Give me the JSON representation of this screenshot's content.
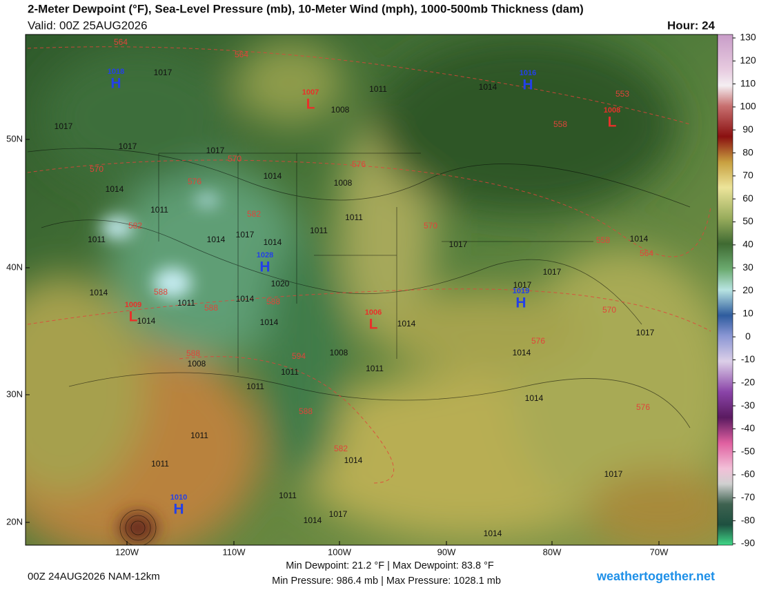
{
  "header": {
    "title": "2-Meter Dewpoint (°F), Sea-Level Pressure (mb), 10-Meter Wind (mph), 1000-500mb Thickness (dam)",
    "valid": "Valid: 00Z 25AUG2026",
    "hour": "Hour: 24"
  },
  "colorbar": {
    "labels": [
      130,
      120,
      110,
      100,
      90,
      80,
      70,
      60,
      50,
      40,
      30,
      20,
      10,
      0,
      -10,
      -20,
      -30,
      -40,
      -50,
      -60,
      -70,
      -80,
      -90
    ]
  },
  "axes": {
    "lat_labels": [
      "50N",
      "40N",
      "30N",
      "20N"
    ],
    "lon_labels": [
      "120W",
      "110W",
      "100W",
      "90W",
      "80W",
      "70W"
    ]
  },
  "centers": [
    {
      "symbol": "H",
      "pressure": "1018"
    },
    {
      "symbol": "H",
      "pressure": "1016"
    },
    {
      "symbol": "L",
      "pressure": "1007"
    },
    {
      "symbol": "L",
      "pressure": "1008"
    },
    {
      "symbol": "H",
      "pressure": "1028"
    },
    {
      "symbol": "L",
      "pressure": "1009"
    },
    {
      "symbol": "H",
      "pressure": "1019"
    },
    {
      "symbol": "L",
      "pressure": "1006"
    },
    {
      "symbol": "H",
      "pressure": "1010"
    }
  ],
  "isobar_labels": [
    "1017",
    "1011",
    "1014",
    "1008",
    "1017",
    "1017",
    "1017",
    "1014",
    "1008",
    "1014",
    "1011",
    "1011",
    "1011",
    "1011",
    "1017",
    "1014",
    "1014",
    "1017",
    "1014",
    "1017",
    "1017",
    "1014",
    "1011",
    "1014",
    "1020",
    "1014",
    "1014",
    "1014",
    "1017",
    "1008",
    "1008",
    "1011",
    "1011",
    "1011",
    "1014",
    "1014",
    "1011",
    "1014",
    "1011",
    "1017",
    "1011",
    "1014",
    "1017",
    "1014"
  ],
  "thickness_labels": [
    "564",
    "564",
    "553",
    "558",
    "570",
    "570",
    "576",
    "576",
    "582",
    "582",
    "570",
    "558",
    "564",
    "588",
    "588",
    "588",
    "570",
    "576",
    "588",
    "594",
    "588",
    "576",
    "582"
  ],
  "footer": {
    "run": "00Z 24AUG2026 NAM-12km",
    "dewpoint_stats": "Min Dewpoint:  21.2 °F | Max Dewpoint:  83.8 °F",
    "pressure_stats": "Min Pressure: 986.4 mb | Max Pressure: 1028.1 mb",
    "site": "weathertogether.net"
  }
}
